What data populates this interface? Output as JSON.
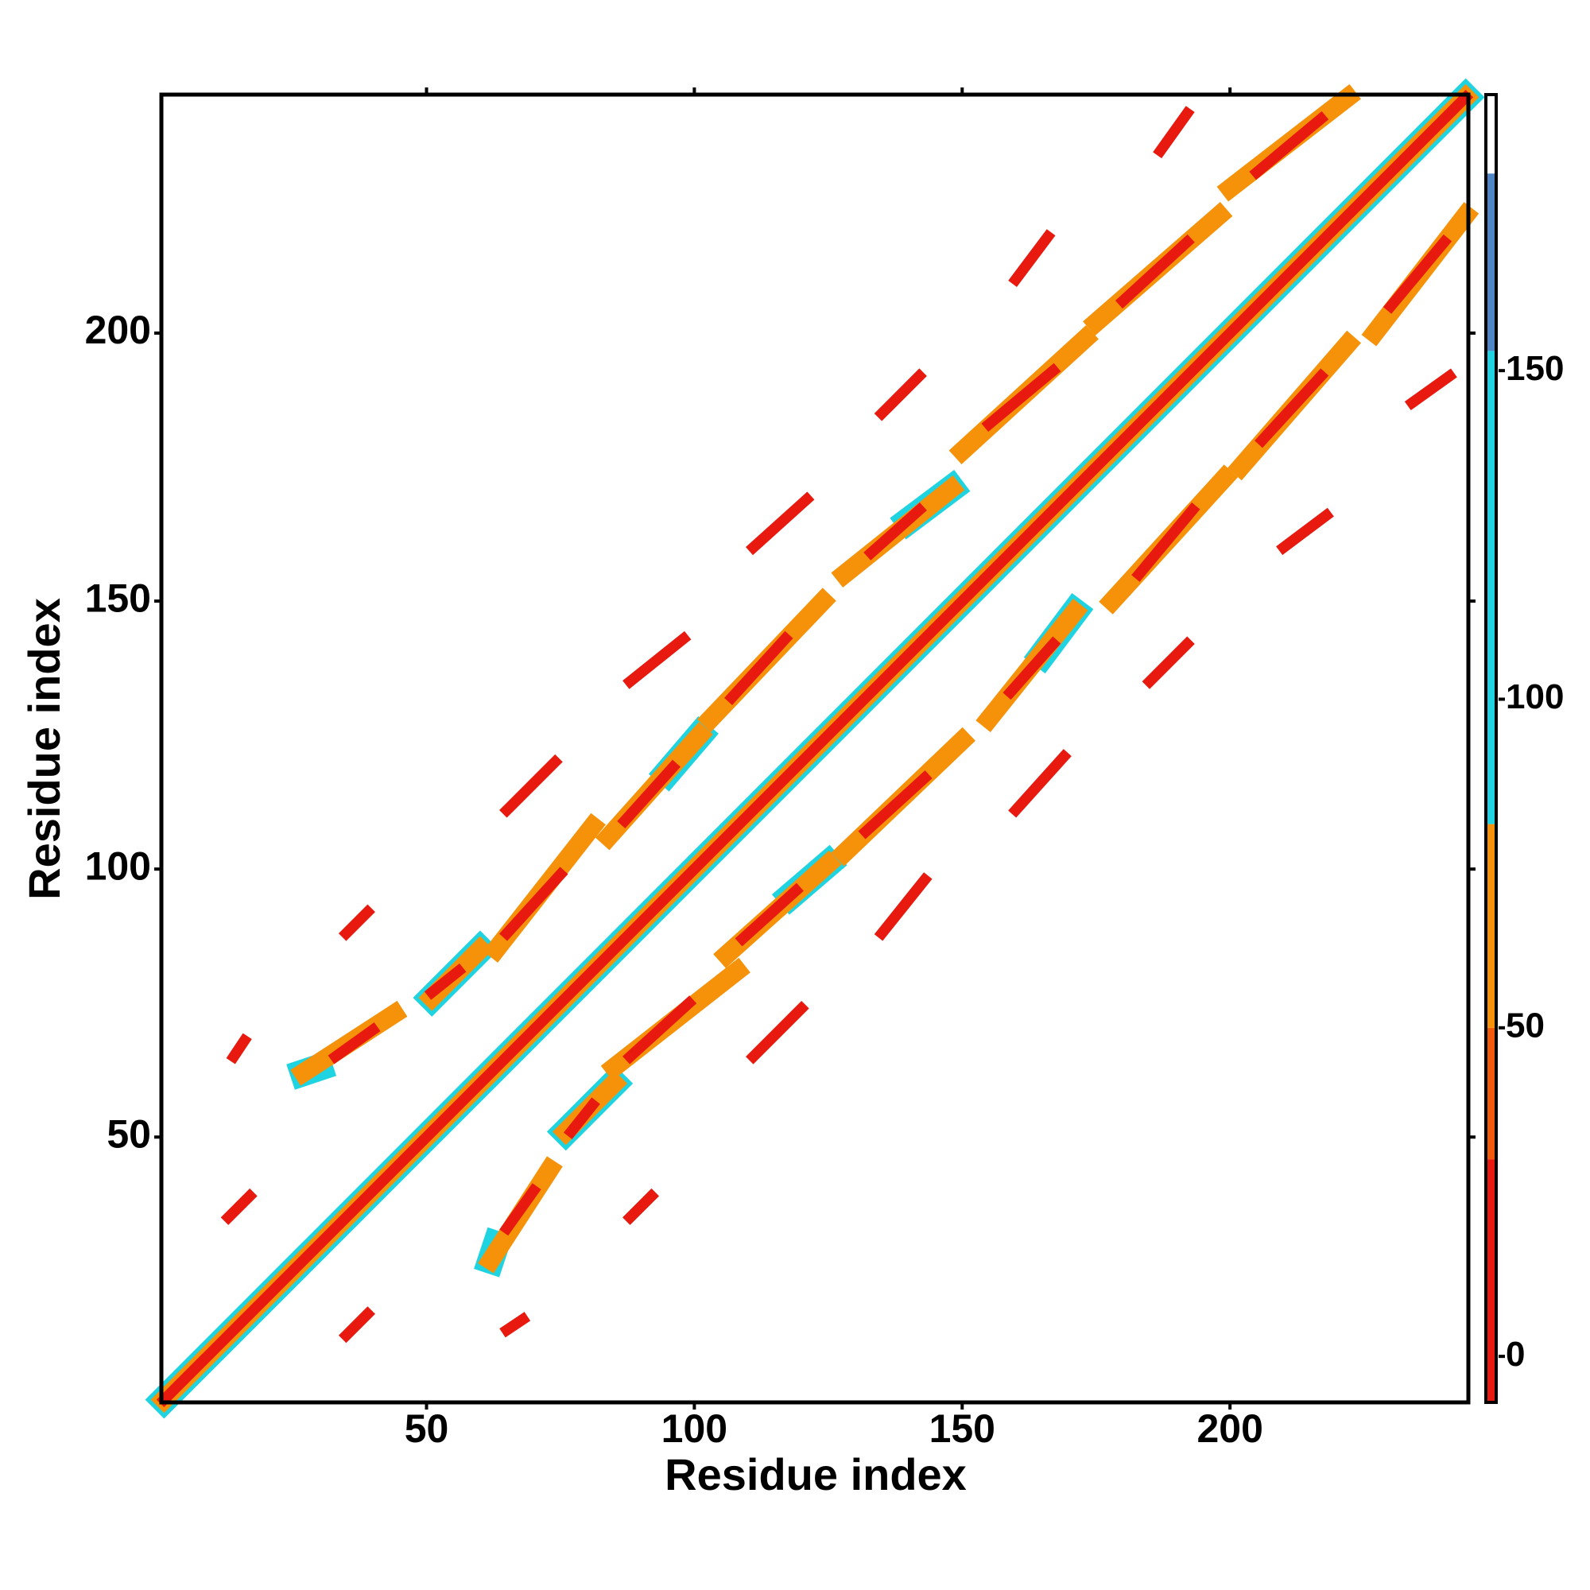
{
  "chart_data": {
    "type": "heatmap",
    "xlabel": "Residue index",
    "ylabel": "Residue index",
    "xlim": [
      0.5,
      244.5
    ],
    "ylim": [
      0.5,
      244.5
    ],
    "xticks": [
      50,
      100,
      150,
      200
    ],
    "yticks": [
      50,
      100,
      150,
      200
    ],
    "symmetric": true,
    "colorbar": {
      "lim": [
        -7,
        192
      ],
      "ticks": [
        0,
        50,
        100,
        150
      ],
      "colors": [
        {
          "range": [
            -7,
            30
          ],
          "color": "#e8190e"
        },
        {
          "range": [
            30,
            50
          ],
          "color": "#f05a0a"
        },
        {
          "range": [
            50,
            81
          ],
          "color": "#f5920a"
        },
        {
          "range": [
            81,
            153
          ],
          "color": "#1fd3e0"
        },
        {
          "range": [
            153,
            180
          ],
          "color": "#4f86c6"
        },
        {
          "range": [
            180,
            192
          ],
          "color": "#ffffff"
        }
      ]
    },
    "segments": [
      {
        "x": [
          1,
          244
        ],
        "y": [
          1,
          244
        ],
        "value": 100
      },
      {
        "x": [
          1,
          244
        ],
        "y": [
          1,
          244
        ],
        "value": 60
      },
      {
        "x": [
          1,
          244
        ],
        "y": [
          1,
          244
        ],
        "value": 5
      },
      {
        "x": [
          13,
          17
        ],
        "y": [
          35,
          39
        ],
        "value": 10
      },
      {
        "x": [
          27,
          30
        ],
        "y": [
          62,
          63
        ],
        "value": 100
      },
      {
        "x": [
          27,
          44
        ],
        "y": [
          62,
          73
        ],
        "value": 60
      },
      {
        "x": [
          33,
          40
        ],
        "y": [
          65,
          70
        ],
        "value": 10
      },
      {
        "x": [
          51,
          60
        ],
        "y": [
          76,
          85
        ],
        "value": 100
      },
      {
        "x": [
          51,
          60
        ],
        "y": [
          76,
          85
        ],
        "value": 60
      },
      {
        "x": [
          51,
          56
        ],
        "y": [
          77,
          81
        ],
        "value": 10
      },
      {
        "x": [
          63,
          81
        ],
        "y": [
          85,
          108
        ],
        "value": 60
      },
      {
        "x": [
          65,
          75
        ],
        "y": [
          88,
          99
        ],
        "value": 10
      },
      {
        "x": [
          95,
          101
        ],
        "y": [
          118,
          125
        ],
        "value": 100
      },
      {
        "x": [
          84,
          101
        ],
        "y": [
          106,
          125
        ],
        "value": 60
      },
      {
        "x": [
          87,
          96
        ],
        "y": [
          109,
          119
        ],
        "value": 10
      },
      {
        "x": [
          103,
          124
        ],
        "y": [
          128,
          150
        ],
        "value": 60
      },
      {
        "x": [
          107,
          117
        ],
        "y": [
          132,
          143
        ],
        "value": 10
      },
      {
        "x": [
          140,
          148
        ],
        "y": [
          165,
          171
        ],
        "value": 100
      },
      {
        "x": [
          128,
          148
        ],
        "y": [
          155,
          171
        ],
        "value": 60
      },
      {
        "x": [
          133,
          142
        ],
        "y": [
          159,
          167
        ],
        "value": 10
      },
      {
        "x": [
          150,
          173
        ],
        "y": [
          178,
          199
        ],
        "value": 60
      },
      {
        "x": [
          155,
          167
        ],
        "y": [
          183,
          193
        ],
        "value": 10
      },
      {
        "x": [
          175,
          198
        ],
        "y": [
          202,
          222
        ],
        "value": 60
      },
      {
        "x": [
          180,
          192
        ],
        "y": [
          206,
          217
        ],
        "value": 10
      },
      {
        "x": [
          200,
          222
        ],
        "y": [
          227,
          244
        ],
        "value": 60
      },
      {
        "x": [
          205,
          217
        ],
        "y": [
          230,
          240
        ],
        "value": 10
      },
      {
        "x": [
          35,
          39
        ],
        "y": [
          88,
          92
        ],
        "value": 10
      },
      {
        "x": [
          65,
          74
        ],
        "y": [
          111,
          120
        ],
        "value": 10
      },
      {
        "x": [
          88,
          98
        ],
        "y": [
          135,
          143
        ],
        "value": 10
      },
      {
        "x": [
          111,
          121
        ],
        "y": [
          160,
          169
        ],
        "value": 10
      },
      {
        "x": [
          135,
          142
        ],
        "y": [
          185,
          192
        ],
        "value": 10
      },
      {
        "x": [
          160,
          166
        ],
        "y": [
          210,
          218
        ],
        "value": 10
      },
      {
        "x": [
          187,
          192
        ],
        "y": [
          234,
          241
        ],
        "value": 10
      },
      {
        "x": [
          14,
          16
        ],
        "y": [
          65,
          68
        ],
        "value": 10
      }
    ]
  }
}
